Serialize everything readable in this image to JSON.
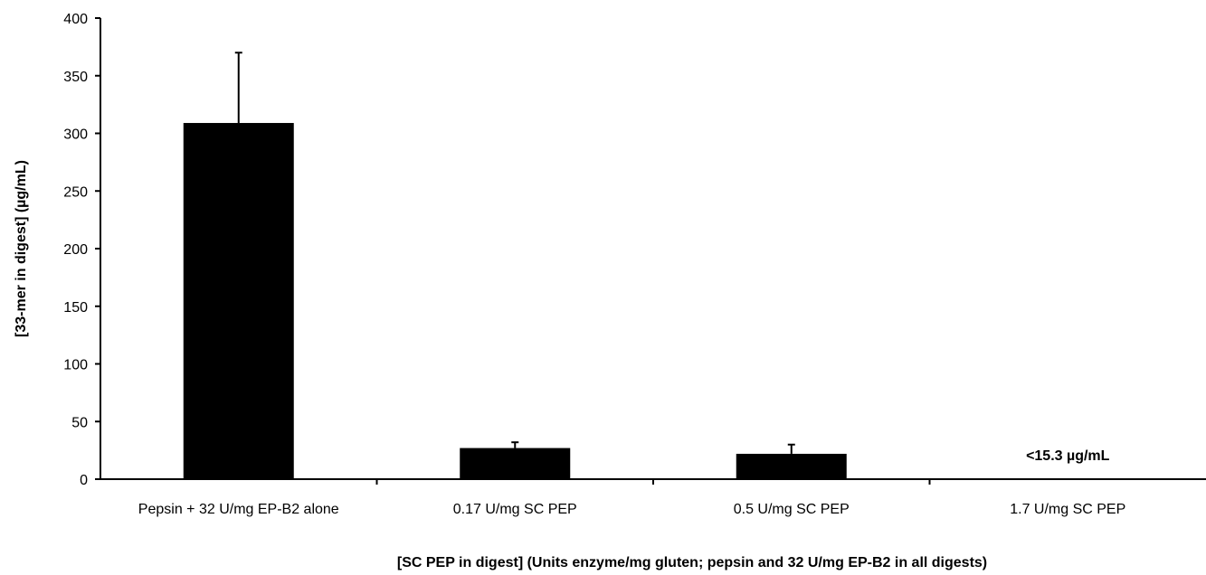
{
  "chart_data": {
    "type": "bar",
    "categories": [
      "Pepsin + 32 U/mg EP-B2 alone",
      "0.17 U/mg SC PEP",
      "0.5 U/mg SC PEP",
      "1.7 U/mg SC PEP"
    ],
    "values": [
      309,
      27,
      22,
      0
    ],
    "error_plus": [
      61,
      5,
      8,
      0
    ],
    "ylabel": "[33-mer in digest] (µg/mL)",
    "xlabel": "[SC PEP in digest] (Units enzyme/mg gluten; pepsin and 32 U/mg EP-B2 in all digests)",
    "ylim": [
      0,
      400
    ],
    "yticks": [
      0,
      50,
      100,
      150,
      200,
      250,
      300,
      350,
      400
    ],
    "annotation": "<15.3 µg/mL",
    "bar_color": "#000000",
    "grid": false,
    "legend": "none"
  }
}
